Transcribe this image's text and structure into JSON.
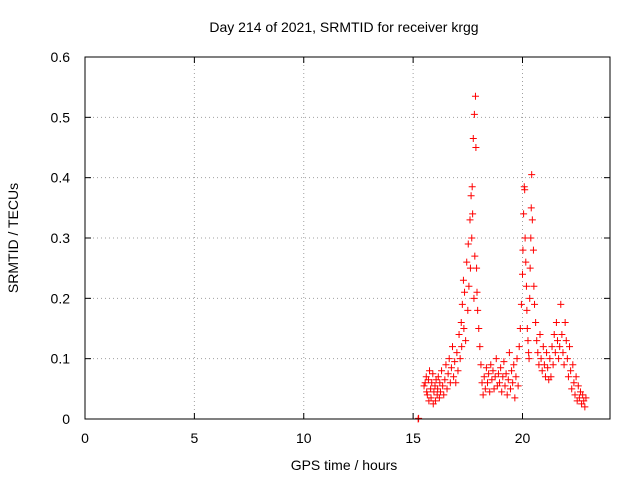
{
  "chart_data": {
    "type": "scatter",
    "title": "Day 214 of 2021, SRMTID for receiver krgg",
    "xlabel": "GPS time / hours",
    "ylabel": "SRMTID / TECUs",
    "xlim": [
      0,
      24
    ],
    "ylim": [
      0,
      0.6
    ],
    "x_ticks": [
      0,
      5,
      10,
      15,
      20
    ],
    "x_tick_labels": [
      "0",
      "5",
      "10",
      "15",
      "20"
    ],
    "y_ticks": [
      0,
      0.1,
      0.2,
      0.3,
      0.4,
      0.5,
      0.6
    ],
    "y_tick_labels": [
      "0",
      "0.1",
      "0.2",
      "0.3",
      "0.4",
      "0.5",
      "0.6"
    ],
    "grid": true,
    "marker": "plus",
    "point_color": "#ff0000",
    "series": [
      {
        "name": "SRMTID",
        "points": [
          [
            15.23,
            0.0
          ],
          [
            15.25,
            0.001
          ],
          [
            15.5,
            0.055
          ],
          [
            15.55,
            0.06
          ],
          [
            15.6,
            0.07
          ],
          [
            15.62,
            0.045
          ],
          [
            15.65,
            0.04
          ],
          [
            15.7,
            0.065
          ],
          [
            15.72,
            0.03
          ],
          [
            15.75,
            0.08
          ],
          [
            15.8,
            0.05
          ],
          [
            15.82,
            0.035
          ],
          [
            15.85,
            0.06
          ],
          [
            15.9,
            0.075
          ],
          [
            15.92,
            0.025
          ],
          [
            15.95,
            0.045
          ],
          [
            16.0,
            0.055
          ],
          [
            16.02,
            0.03
          ],
          [
            16.05,
            0.065
          ],
          [
            16.1,
            0.04
          ],
          [
            16.12,
            0.05
          ],
          [
            16.15,
            0.07
          ],
          [
            16.2,
            0.035
          ],
          [
            16.22,
            0.06
          ],
          [
            16.25,
            0.045
          ],
          [
            16.3,
            0.08
          ],
          [
            16.35,
            0.055
          ],
          [
            16.4,
            0.04
          ],
          [
            16.45,
            0.065
          ],
          [
            16.5,
            0.09
          ],
          [
            16.55,
            0.05
          ],
          [
            16.6,
            0.075
          ],
          [
            16.65,
            0.1
          ],
          [
            16.7,
            0.06
          ],
          [
            16.75,
            0.085
          ],
          [
            16.8,
            0.12
          ],
          [
            16.85,
            0.07
          ],
          [
            16.9,
            0.095
          ],
          [
            16.95,
            0.06
          ],
          [
            17.0,
            0.11
          ],
          [
            17.05,
            0.08
          ],
          [
            17.1,
            0.14
          ],
          [
            17.15,
            0.1
          ],
          [
            17.2,
            0.16
          ],
          [
            17.22,
            0.12
          ],
          [
            17.25,
            0.19
          ],
          [
            17.3,
            0.23
          ],
          [
            17.32,
            0.15
          ],
          [
            17.35,
            0.21
          ],
          [
            17.4,
            0.13
          ],
          [
            17.45,
            0.26
          ],
          [
            17.5,
            0.18
          ],
          [
            17.52,
            0.29
          ],
          [
            17.55,
            0.22
          ],
          [
            17.6,
            0.33
          ],
          [
            17.62,
            0.25
          ],
          [
            17.65,
            0.37
          ],
          [
            17.68,
            0.3
          ],
          [
            17.7,
            0.385
          ],
          [
            17.72,
            0.34
          ],
          [
            17.75,
            0.465
          ],
          [
            17.78,
            0.2
          ],
          [
            17.8,
            0.505
          ],
          [
            17.82,
            0.27
          ],
          [
            17.85,
            0.535
          ],
          [
            17.87,
            0.45
          ],
          [
            17.9,
            0.25
          ],
          [
            17.92,
            0.21
          ],
          [
            17.95,
            0.18
          ],
          [
            18.0,
            0.15
          ],
          [
            18.05,
            0.12
          ],
          [
            18.1,
            0.09
          ],
          [
            18.15,
            0.06
          ],
          [
            18.2,
            0.04
          ],
          [
            18.25,
            0.07
          ],
          [
            18.3,
            0.05
          ],
          [
            18.35,
            0.085
          ],
          [
            18.4,
            0.06
          ],
          [
            18.45,
            0.075
          ],
          [
            18.5,
            0.045
          ],
          [
            18.55,
            0.09
          ],
          [
            18.6,
            0.065
          ],
          [
            18.65,
            0.08
          ],
          [
            18.7,
            0.05
          ],
          [
            18.75,
            0.07
          ],
          [
            18.8,
            0.1
          ],
          [
            18.85,
            0.055
          ],
          [
            18.9,
            0.075
          ],
          [
            18.95,
            0.06
          ],
          [
            19.0,
            0.085
          ],
          [
            19.05,
            0.045
          ],
          [
            19.1,
            0.07
          ],
          [
            19.15,
            0.095
          ],
          [
            19.2,
            0.055
          ],
          [
            19.25,
            0.075
          ],
          [
            19.3,
            0.04
          ],
          [
            19.35,
            0.065
          ],
          [
            19.4,
            0.11
          ],
          [
            19.45,
            0.05
          ],
          [
            19.5,
            0.08
          ],
          [
            19.55,
            0.06
          ],
          [
            19.6,
            0.09
          ],
          [
            19.65,
            0.035
          ],
          [
            19.7,
            0.07
          ],
          [
            19.75,
            0.1
          ],
          [
            19.8,
            0.055
          ],
          [
            19.85,
            0.12
          ],
          [
            19.9,
            0.15
          ],
          [
            19.95,
            0.19
          ],
          [
            20.0,
            0.24
          ],
          [
            20.02,
            0.28
          ],
          [
            20.05,
            0.34
          ],
          [
            20.08,
            0.385
          ],
          [
            20.1,
            0.38
          ],
          [
            20.12,
            0.3
          ],
          [
            20.15,
            0.26
          ],
          [
            20.18,
            0.22
          ],
          [
            20.2,
            0.18
          ],
          [
            20.22,
            0.15
          ],
          [
            20.25,
            0.13
          ],
          [
            20.28,
            0.11
          ],
          [
            20.3,
            0.1
          ],
          [
            20.33,
            0.2
          ],
          [
            20.35,
            0.25
          ],
          [
            20.38,
            0.3
          ],
          [
            20.4,
            0.35
          ],
          [
            20.42,
            0.405
          ],
          [
            20.45,
            0.33
          ],
          [
            20.5,
            0.28
          ],
          [
            20.52,
            0.22
          ],
          [
            20.55,
            0.19
          ],
          [
            20.6,
            0.16
          ],
          [
            20.65,
            0.13
          ],
          [
            20.7,
            0.11
          ],
          [
            20.75,
            0.09
          ],
          [
            20.8,
            0.14
          ],
          [
            20.85,
            0.1
          ],
          [
            20.9,
            0.08
          ],
          [
            20.95,
            0.12
          ],
          [
            21.0,
            0.09
          ],
          [
            21.05,
            0.07
          ],
          [
            21.1,
            0.11
          ],
          [
            21.15,
            0.085
          ],
          [
            21.2,
            0.065
          ],
          [
            21.25,
            0.1
          ],
          [
            21.3,
            0.07
          ],
          [
            21.35,
            0.12
          ],
          [
            21.4,
            0.09
          ],
          [
            21.45,
            0.14
          ],
          [
            21.5,
            0.11
          ],
          [
            21.55,
            0.16
          ],
          [
            21.6,
            0.13
          ],
          [
            21.65,
            0.1
          ],
          [
            21.7,
            0.12
          ],
          [
            21.75,
            0.19
          ],
          [
            21.8,
            0.14
          ],
          [
            21.85,
            0.11
          ],
          [
            21.9,
            0.09
          ],
          [
            21.95,
            0.16
          ],
          [
            22.0,
            0.13
          ],
          [
            22.05,
            0.1
          ],
          [
            22.1,
            0.07
          ],
          [
            22.15,
            0.12
          ],
          [
            22.2,
            0.08
          ],
          [
            22.25,
            0.05
          ],
          [
            22.3,
            0.09
          ],
          [
            22.35,
            0.06
          ],
          [
            22.4,
            0.04
          ],
          [
            22.45,
            0.07
          ],
          [
            22.5,
            0.03
          ],
          [
            22.55,
            0.055
          ],
          [
            22.6,
            0.035
          ],
          [
            22.65,
            0.045
          ],
          [
            22.7,
            0.025
          ],
          [
            22.75,
            0.04
          ],
          [
            22.8,
            0.03
          ],
          [
            22.85,
            0.02
          ],
          [
            22.9,
            0.035
          ]
        ]
      }
    ]
  }
}
